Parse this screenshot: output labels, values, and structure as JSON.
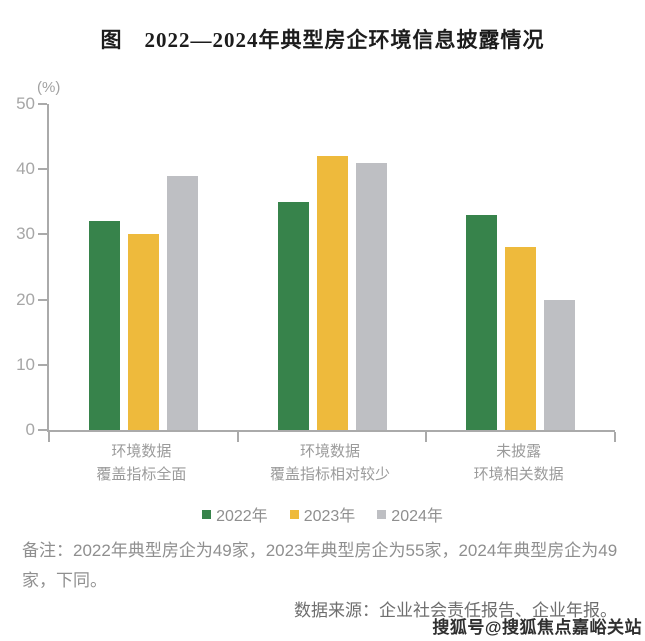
{
  "figure": {
    "title": "图　2022—2024年典型房企环境信息披露情况"
  },
  "chart_data": {
    "type": "bar",
    "title": "图　2022—2024年典型房企环境信息披露情况",
    "unit_label": "(%)",
    "categories": [
      "环境数据\n覆盖指标全面",
      "环境数据\n覆盖指标相对较少",
      "未披露\n环境相关数据"
    ],
    "series": [
      {
        "name": "2022年",
        "color": "#37834B",
        "values": [
          32,
          35,
          33
        ]
      },
      {
        "name": "2023年",
        "color": "#EEBA3C",
        "values": [
          30,
          42,
          28
        ]
      },
      {
        "name": "2024年",
        "color": "#BEBFC3",
        "values": [
          39,
          41,
          20
        ]
      }
    ],
    "xlabel": "",
    "ylabel": "(%)",
    "ylim": [
      0,
      50
    ],
    "yticks": [
      0,
      10,
      20,
      30,
      40,
      50
    ],
    "grid": false,
    "legend_position": "bottom"
  },
  "notes": {
    "remark": "备注：2022年典型房企为49家，2023年典型房企为55家，2024年典型房企为49家，下同。",
    "source": "数据来源：企业社会责任报告、企业年报。"
  },
  "watermark": "搜狐号@搜狐焦点嘉峪关站",
  "colors": {
    "axis": "#aaaaaa",
    "tick_label": "#a6a6a6",
    "category_label": "#9b9b9b",
    "note_text": "#8f8f8f",
    "title_text": "#1c1c1c"
  }
}
